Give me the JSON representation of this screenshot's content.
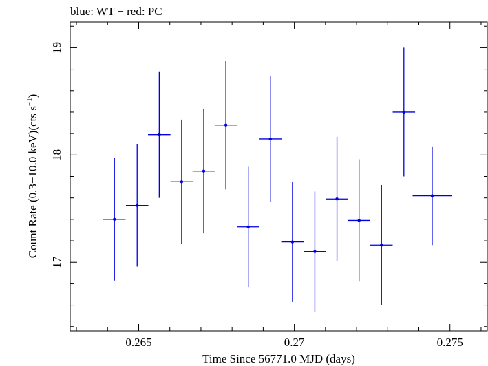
{
  "chart_data": {
    "type": "scatter",
    "title": "blue: WT − red: PC",
    "xlabel": "Time Since 56771.0 MJD (days)",
    "ylabel_main": "Count Rate (0.3−10.0 keV)(cts s",
    "ylabel_sup": "−1",
    "ylabel_close": ")",
    "xlim": [
      0.2628,
      0.2762
    ],
    "ylim": [
      16.36,
      19.24
    ],
    "xticks": [
      0.265,
      0.27,
      0.275
    ],
    "xtick_labels": [
      "0.265",
      "0.27",
      "0.275"
    ],
    "yticks": [
      17,
      18,
      19
    ],
    "ytick_labels": [
      "17",
      "18",
      "19"
    ],
    "series_color": "#0000e0",
    "series": [
      {
        "points": [
          {
            "x": 0.26422,
            "xerr": 0.00036,
            "y": 17.4,
            "yerr": 0.57
          },
          {
            "x": 0.26495,
            "xerr": 0.00036,
            "y": 17.53,
            "yerr": 0.57
          },
          {
            "x": 0.26566,
            "xerr": 0.00036,
            "y": 18.19,
            "yerr": 0.59
          },
          {
            "x": 0.26638,
            "xerr": 0.00036,
            "y": 17.75,
            "yerr": 0.58
          },
          {
            "x": 0.26709,
            "xerr": 0.00036,
            "y": 17.85,
            "yerr": 0.58
          },
          {
            "x": 0.2678,
            "xerr": 0.00036,
            "y": 18.28,
            "yerr": 0.6
          },
          {
            "x": 0.26852,
            "xerr": 0.00036,
            "y": 17.33,
            "yerr": 0.56
          },
          {
            "x": 0.26923,
            "xerr": 0.00036,
            "y": 18.15,
            "yerr": 0.59
          },
          {
            "x": 0.26994,
            "xerr": 0.00036,
            "y": 17.19,
            "yerr": 0.56
          },
          {
            "x": 0.27066,
            "xerr": 0.00036,
            "y": 17.1,
            "yerr": 0.56
          },
          {
            "x": 0.27137,
            "xerr": 0.00036,
            "y": 17.59,
            "yerr": 0.58
          },
          {
            "x": 0.27208,
            "xerr": 0.00036,
            "y": 17.39,
            "yerr": 0.57
          },
          {
            "x": 0.2728,
            "xerr": 0.00036,
            "y": 17.16,
            "yerr": 0.56
          },
          {
            "x": 0.27352,
            "xerr": 0.00036,
            "y": 18.4,
            "yerr": 0.6
          },
          {
            "x": 0.27443,
            "xerr": 0.00063,
            "y": 17.62,
            "yerr": 0.46
          }
        ]
      }
    ]
  }
}
